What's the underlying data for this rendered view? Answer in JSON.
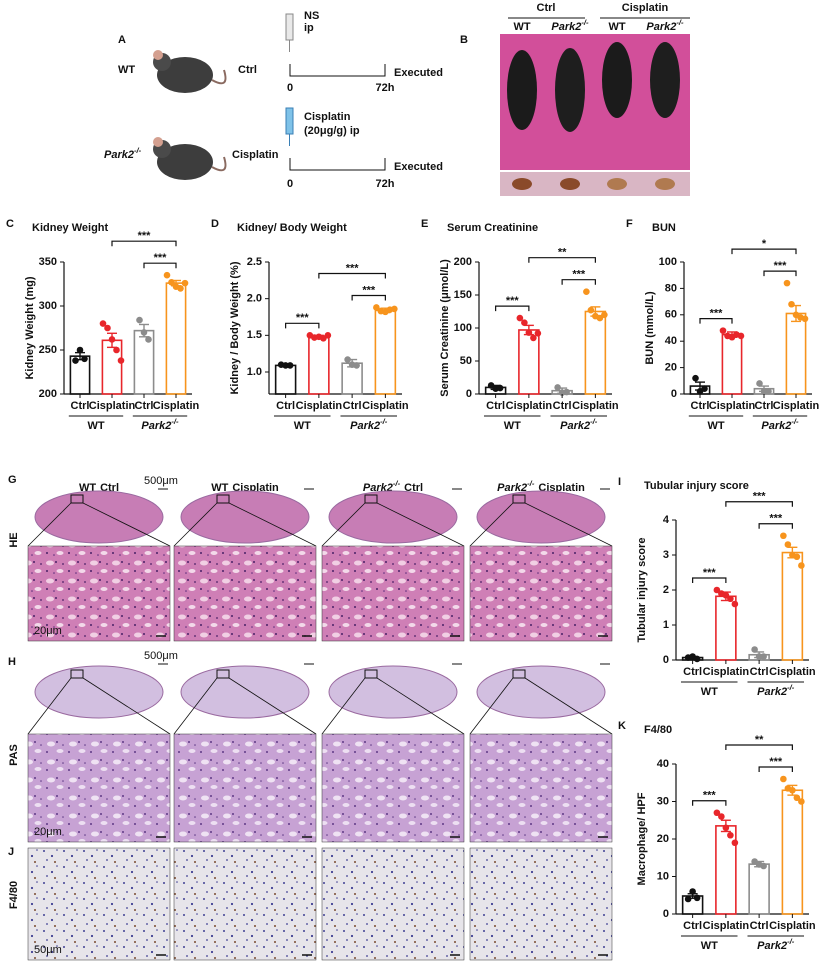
{
  "panel_a": {
    "label": "A",
    "wt": "WT",
    "park2": {
      "text": "Park2",
      "sup": "-/-"
    },
    "ctrl": "Ctrl",
    "cisplatin": "Cisplatin",
    "ns": "NS",
    "ns_route": "ip",
    "drug": "Cisplatin",
    "dose": "(20μg/g) ip",
    "t0": "0",
    "t_end": "72h",
    "end": "Executed"
  },
  "panel_b": {
    "label": "B",
    "ctrl": "Ctrl",
    "cisplatin": "Cisplatin",
    "wt": {
      "text": "WT"
    },
    "park2": {
      "text": "Park2",
      "sup": "-/-"
    }
  },
  "chart_data": [
    {
      "type": "bar",
      "label": "C",
      "title": "Kidney Weight",
      "ylabel": "Kidney Weight (mg)",
      "categories": [
        "Ctrl",
        "Cisplatin",
        "Ctrl",
        "Cisplatin"
      ],
      "groups": [
        {
          "text": "WT"
        },
        {
          "text": "Park2",
          "sup": "-/-"
        }
      ],
      "colors": [
        "#111111",
        "#e8262b",
        "#8c8c8c",
        "#f7941d"
      ],
      "values": [
        243,
        261,
        272,
        326
      ],
      "errors": [
        4,
        8,
        7,
        3
      ],
      "points": [
        [
          238,
          250,
          240
        ],
        [
          280,
          275,
          262,
          250,
          238
        ],
        [
          284,
          270,
          262
        ],
        [
          335,
          327,
          322,
          320,
          326
        ]
      ],
      "ylim": [
        200,
        350
      ],
      "yticks": [
        200,
        250,
        300,
        350
      ],
      "significance": [
        {
          "pair": [
            1,
            3
          ],
          "label": "***"
        },
        {
          "pair": [
            2,
            3
          ],
          "label": "***"
        }
      ]
    },
    {
      "type": "bar",
      "label": "D",
      "title": "Kidney/ Body Weight",
      "ylabel": "Kidney / Body Weight (%)",
      "categories": [
        "Ctrl",
        "Cisplatin",
        "Ctrl",
        "Cisplatin"
      ],
      "groups": [
        {
          "text": "WT"
        },
        {
          "text": "Park2",
          "sup": "-/-"
        }
      ],
      "colors": [
        "#111111",
        "#e8262b",
        "#8c8c8c",
        "#f7941d"
      ],
      "values": [
        1.09,
        1.48,
        1.12,
        1.84
      ],
      "errors": [
        0.01,
        0.02,
        0.05,
        0.03
      ],
      "points": [
        [
          1.1,
          1.09,
          1.09
        ],
        [
          1.5,
          1.47,
          1.48,
          1.46,
          1.5
        ],
        [
          1.17,
          1.1,
          1.09
        ],
        [
          1.88,
          1.83,
          1.82,
          1.85,
          1.86
        ]
      ],
      "ylim": [
        0.7,
        2.5
      ],
      "yticks": [
        {
          "value": 1,
          "label": "1.0"
        },
        1.5,
        {
          "value": 2,
          "label": "2.0"
        },
        2.5
      ],
      "significance": [
        {
          "pair": [
            0,
            1
          ],
          "label": "***"
        },
        {
          "pair": [
            1,
            3
          ],
          "label": "***"
        },
        {
          "pair": [
            2,
            3
          ],
          "label": "***"
        }
      ]
    },
    {
      "type": "bar",
      "label": "E",
      "title": "Serum Creatinine",
      "ylabel": "Serum Creatinine (μmol/L)",
      "categories": [
        "Ctrl",
        "Cisplatin",
        "Ctrl",
        "Cisplatin"
      ],
      "groups": [
        {
          "text": "WT"
        },
        {
          "text": "Park2",
          "sup": "-/-"
        }
      ],
      "colors": [
        "#111111",
        "#e8262b",
        "#8c8c8c",
        "#f7941d"
      ],
      "values": [
        10,
        97,
        5,
        125
      ],
      "errors": [
        3,
        7,
        4,
        7
      ],
      "points": [
        [
          13,
          8,
          9
        ],
        [
          115,
          108,
          93,
          85,
          92
        ],
        [
          10,
          2,
          3
        ],
        [
          155,
          127,
          118,
          115,
          120
        ]
      ],
      "ylim": [
        0,
        200
      ],
      "yticks": [
        0,
        50,
        100,
        150,
        200
      ],
      "significance": [
        {
          "pair": [
            0,
            1
          ],
          "label": "***"
        },
        {
          "pair": [
            1,
            3
          ],
          "label": "**"
        },
        {
          "pair": [
            2,
            3
          ],
          "label": "***"
        }
      ]
    },
    {
      "type": "bar",
      "label": "F",
      "title": "BUN",
      "ylabel": "BUN (mmol/L)",
      "categories": [
        "Ctrl",
        "Cisplatin",
        "Ctrl",
        "Cisplatin"
      ],
      "groups": [
        {
          "text": "WT"
        },
        {
          "text": "Park2",
          "sup": "-/-"
        }
      ],
      "colors": [
        "#111111",
        "#e8262b",
        "#8c8c8c",
        "#f7941d"
      ],
      "values": [
        6,
        45,
        4,
        61
      ],
      "errors": [
        3,
        2,
        2,
        6
      ],
      "points": [
        [
          12,
          2,
          4
        ],
        [
          48,
          44,
          43,
          45,
          44
        ],
        [
          8,
          2,
          2
        ],
        [
          84,
          68,
          60,
          58,
          57
        ]
      ],
      "ylim": [
        0,
        100
      ],
      "yticks": [
        0,
        20,
        40,
        60,
        80,
        100
      ],
      "significance": [
        {
          "pair": [
            0,
            1
          ],
          "label": "***"
        },
        {
          "pair": [
            1,
            3
          ],
          "label": "*"
        },
        {
          "pair": [
            2,
            3
          ],
          "label": "***"
        }
      ]
    },
    {
      "type": "bar",
      "label": "I",
      "title": "Tubular injury score",
      "ylabel": "Tubular injury score",
      "categories": [
        "Ctrl",
        "Cisplatin",
        "Ctrl",
        "Cisplatin"
      ],
      "groups": [
        {
          "text": "WT"
        },
        {
          "text": "Park2",
          "sup": "-/-"
        }
      ],
      "colors": [
        "#111111",
        "#e8262b",
        "#8c8c8c",
        "#f7941d"
      ],
      "values": [
        0.07,
        1.82,
        0.15,
        3.07
      ],
      "errors": [
        0.03,
        0.12,
        0.08,
        0.15
      ],
      "points": [
        [
          0.07,
          0.1,
          0.03
        ],
        [
          2.0,
          1.9,
          1.85,
          1.75,
          1.6
        ],
        [
          0.3,
          0.1,
          0.1
        ],
        [
          3.55,
          3.3,
          3.0,
          2.95,
          2.7
        ]
      ],
      "ylim": [
        0,
        4
      ],
      "yticks": [
        0,
        1,
        2,
        3,
        4
      ],
      "significance": [
        {
          "pair": [
            0,
            1
          ],
          "label": "***"
        },
        {
          "pair": [
            1,
            3
          ],
          "label": "***"
        },
        {
          "pair": [
            2,
            3
          ],
          "label": "***"
        }
      ]
    },
    {
      "type": "bar",
      "label": "K",
      "title": "F4/80",
      "ylabel": "Macrophage/ HPF",
      "categories": [
        "Ctrl",
        "Cisplatin",
        "Ctrl",
        "Cisplatin"
      ],
      "groups": [
        {
          "text": "WT"
        },
        {
          "text": "Park2",
          "sup": "-/-"
        }
      ],
      "colors": [
        "#111111",
        "#e8262b",
        "#8c8c8c",
        "#f7941d"
      ],
      "values": [
        4.8,
        23.5,
        13.3,
        33
      ],
      "errors": [
        0.6,
        1.5,
        0.7,
        1.3
      ],
      "points": [
        [
          4,
          6,
          4.3
        ],
        [
          27,
          26,
          23,
          21,
          19
        ],
        [
          14,
          13.2,
          12.8
        ],
        [
          36,
          33.5,
          33,
          31,
          30
        ]
      ],
      "ylim": [
        0,
        40
      ],
      "yticks": [
        0,
        10,
        20,
        30,
        40
      ],
      "significance": [
        {
          "pair": [
            0,
            1
          ],
          "label": "***"
        },
        {
          "pair": [
            1,
            3
          ],
          "label": "**"
        },
        {
          "pair": [
            2,
            3
          ],
          "label": "***"
        }
      ]
    }
  ],
  "histology": {
    "columns": [
      {
        "strain": {
          "text": "WT"
        },
        "condition": "Ctrl"
      },
      {
        "strain": {
          "text": "WT"
        },
        "condition": "Cisplatin"
      },
      {
        "strain": {
          "text": "Park2",
          "sup": "-/-"
        },
        "condition": "Ctrl"
      },
      {
        "strain": {
          "text": "Park2",
          "sup": "-/-"
        },
        "condition": "Cisplatin"
      }
    ],
    "rows": [
      {
        "label": "G",
        "stain": "HE",
        "scale": "500μm",
        "zoom_scale": "20μm"
      },
      {
        "label": "H",
        "stain": "PAS",
        "scale": "500μm",
        "zoom_scale": "20μm"
      },
      {
        "label": "J",
        "stain": "F4/80",
        "zoom_scale": "50μm"
      }
    ]
  }
}
